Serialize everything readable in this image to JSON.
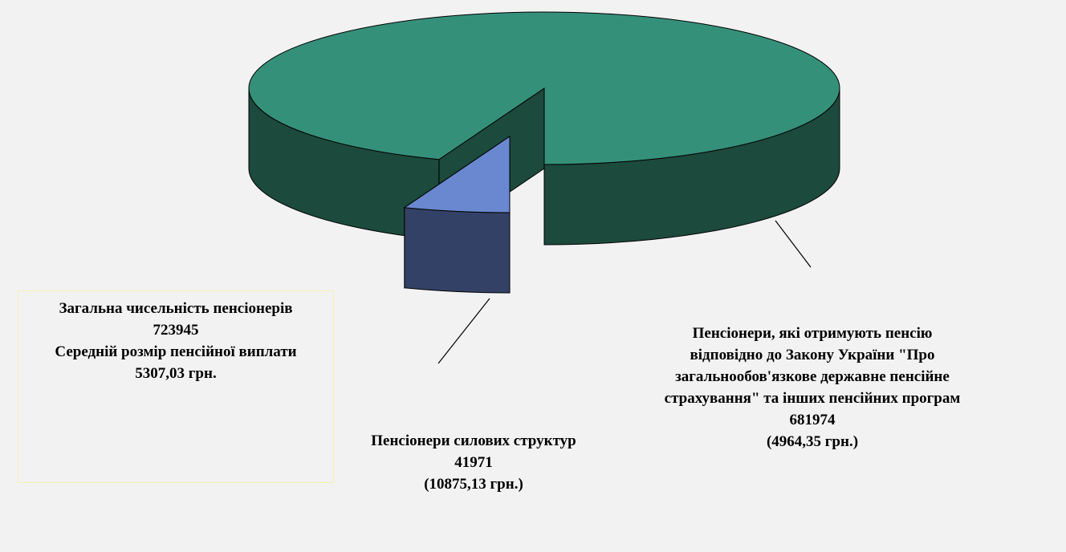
{
  "chart_data": {
    "type": "pie3d",
    "categories": [
      "Пенсіонери, які отримують пенсію відповідно до Закону України \"Про загальнообов'язкове державне пенсійне страхування\" та інших пенсійних програм",
      "Пенсіонери силових структур"
    ],
    "values": [
      681974,
      41971
    ],
    "amount_labels": [
      "(4964,35 грн.)",
      "(10875,13 грн.)"
    ],
    "colors": [
      "#35907a",
      "#6a88cf"
    ],
    "side_colors": [
      "#1c4a3c",
      "#334166"
    ],
    "exploded": [
      false,
      true
    ],
    "summary": {
      "title": "Загальна чисельність пенсіонерів",
      "total": 723945,
      "average_title": "Середній розмір пенсійної виплати",
      "average_label": "5307,03 грн."
    }
  }
}
